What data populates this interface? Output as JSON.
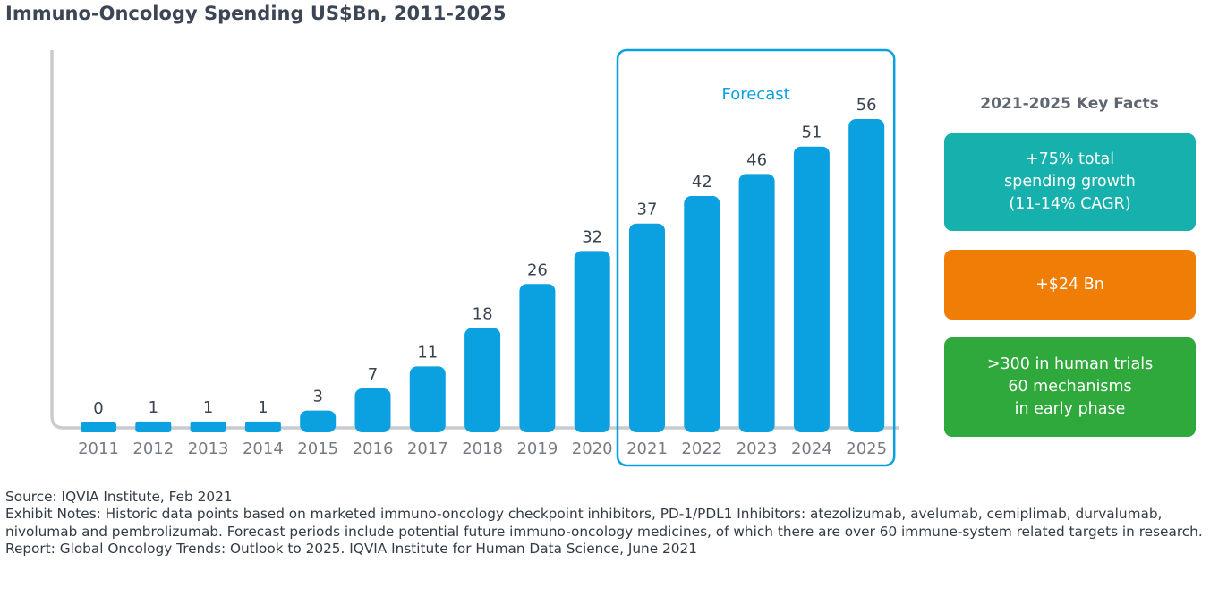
{
  "title": "Immuno-Oncology Spending US$Bn, 2011-2025",
  "chart_data": {
    "type": "bar",
    "title": "Immuno-Oncology Spending US$Bn, 2011-2025",
    "categories": [
      "2011",
      "2012",
      "2013",
      "2014",
      "2015",
      "2016",
      "2017",
      "2018",
      "2019",
      "2020",
      "2021",
      "2022",
      "2023",
      "2024",
      "2025"
    ],
    "values": [
      0,
      1,
      1,
      1,
      3,
      7,
      11,
      18,
      26,
      32,
      37,
      42,
      46,
      51,
      56
    ],
    "bar_color": "#0ba1e0",
    "forecast": {
      "label": "Forecast",
      "from": "2021",
      "to": "2025",
      "color": "#0ba1e0"
    },
    "xlabel": "",
    "ylabel": "",
    "grid": false,
    "legend": "none"
  },
  "key_facts": {
    "title": "2021-2025 Key Facts",
    "boxes": [
      {
        "lines": [
          "+75% total",
          "spending growth",
          "(11-14% CAGR)"
        ],
        "color": "#16b1ac"
      },
      {
        "lines": [
          "+$24 Bn"
        ],
        "color": "#f07d05"
      },
      {
        "lines": [
          ">300 in human trials",
          "60 mechanisms",
          "in early phase"
        ],
        "color": "#2fa83c"
      }
    ]
  },
  "footnotes": {
    "source": "Source: IQVIA Institute, Feb 2021",
    "exhibit_notes": "Exhibit Notes: Historic data points based on marketed immuno-oncology checkpoint inhibitors, PD-1/PDL1 Inhibitors: atezolizumab, avelumab, cemiplimab, durvalumab, nivolumab and pembrolizumab. Forecast periods include potential future immuno-oncology medicines, of which there are over 60 immune-system related targets in research.",
    "report": "Report: Global Oncology Trends: Outlook to 2025. IQVIA Institute for Human Data Science, June 2021"
  }
}
